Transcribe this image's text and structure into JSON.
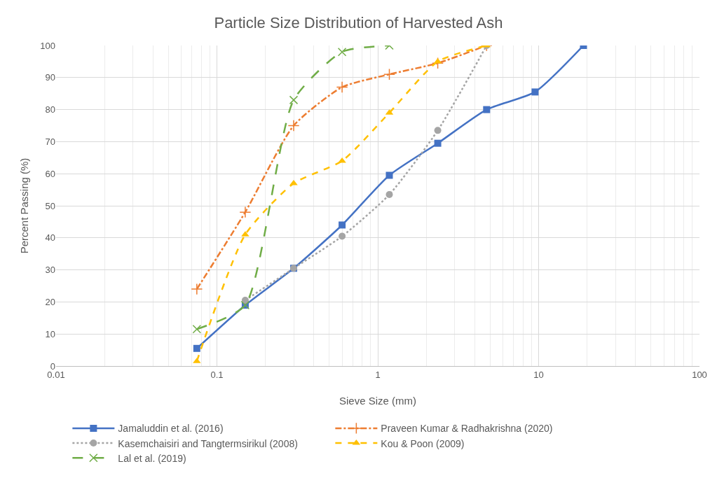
{
  "chart_data": {
    "type": "line",
    "title": "Particle Size Distribution of Harvested Ash",
    "xlabel": "Sieve Size (mm)",
    "ylabel": "Percent Passing (%)",
    "log": "x",
    "grid": true,
    "legend": "bottom",
    "xlim": [
      0.01,
      100
    ],
    "xticks": [
      0.01,
      0.1,
      1,
      10,
      100
    ],
    "ylim": [
      0,
      100
    ],
    "yticks": [
      0,
      10,
      20,
      30,
      40,
      50,
      60,
      70,
      80,
      90,
      100
    ],
    "series": [
      {
        "name": "Jamaluddin et al. (2016)",
        "color": "#4472c4",
        "marker": "square",
        "line_style": "solid",
        "x": [
          0.075,
          0.15,
          0.3,
          0.6,
          1.18,
          2.36,
          4.75,
          9.5,
          19
        ],
        "values": [
          5.5,
          19,
          30.5,
          44,
          59.5,
          69.5,
          80,
          85.5,
          100
        ]
      },
      {
        "name": "Praveen Kumar & Radhakrishna (2020)",
        "color": "#ed7d31",
        "marker": "cross",
        "line_style": "dashdot",
        "x": [
          0.075,
          0.15,
          0.3,
          0.6,
          1.18,
          2.36,
          4.75
        ],
        "values": [
          24,
          48,
          75,
          87,
          91,
          94.5,
          100
        ]
      },
      {
        "name": "Kasemchaisiri and Tangtermsirikul (2008)",
        "color": "#a5a5a5",
        "marker": "circle",
        "line_style": "dotted",
        "x": [
          0.15,
          0.3,
          0.6,
          1.18,
          2.36,
          4.75
        ],
        "values": [
          20.5,
          30.5,
          40.5,
          53.5,
          73.5,
          100
        ]
      },
      {
        "name": "Kou & Poon (2009)",
        "color": "#ffc000",
        "marker": "triangle",
        "line_style": "dashed",
        "x": [
          0.075,
          0.15,
          0.3,
          0.6,
          1.18,
          2.36,
          4.75
        ],
        "values": [
          1.5,
          41,
          57,
          64,
          79,
          95,
          100
        ]
      },
      {
        "name": "Lal et al. (2019)",
        "color": "#70ad47",
        "marker": "x",
        "line_style": "longdash",
        "x": [
          0.075,
          0.15,
          0.3,
          0.6,
          1.18
        ],
        "values": [
          11.5,
          19,
          83,
          98,
          100
        ]
      }
    ]
  }
}
